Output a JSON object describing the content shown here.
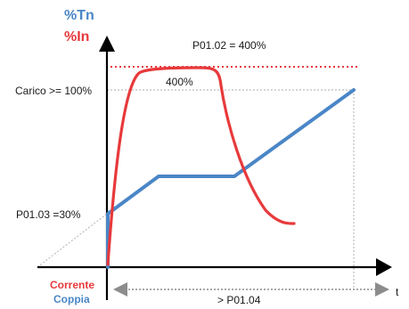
{
  "labels": {
    "y_axis_top": "%Tn",
    "y_axis_bottom": "%In",
    "x_axis": "t",
    "load_level": "Carico >= 100%",
    "torque_start": "P01.03 =30%",
    "current_limit": "P01.02 = 400%",
    "current_peak": "400%",
    "duration": "> P01.04",
    "legend_current": "Corrente",
    "legend_torque": "Coppia"
  },
  "colors": {
    "current": "#e8393b",
    "torque": "#4a86c7",
    "axis": "#000000",
    "guide": "#bdbdbd",
    "duration_arrow": "#8c8c8c"
  }
}
